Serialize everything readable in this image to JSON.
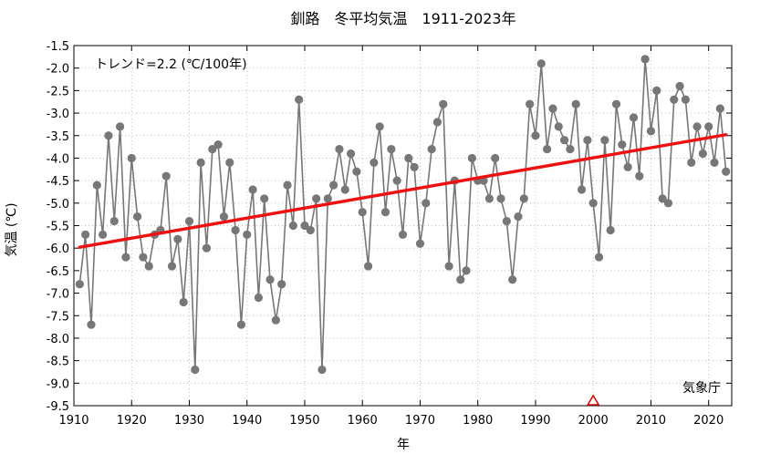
{
  "chart_data": {
    "type": "line",
    "title": "釧路　冬平均気温　1911-2023年",
    "xlabel": "年",
    "ylabel": "気温 (℃)",
    "annotation_trend": "トレンド=2.2 (℃/100年)",
    "source": "気象庁",
    "xlim": [
      1910,
      2024
    ],
    "ylim": [
      -9.5,
      -1.5
    ],
    "x_ticks": [
      1910,
      1920,
      1930,
      1940,
      1950,
      1960,
      1970,
      1980,
      1990,
      2000,
      2010,
      2020
    ],
    "x_tick_labels": [
      "1910",
      "1920",
      "1930",
      "1940",
      "1950",
      "1960",
      "1970",
      "1980",
      "1990",
      "2000",
      "2010",
      "2020"
    ],
    "y_ticks": [
      -9.5,
      -9.0,
      -8.5,
      -8.0,
      -7.5,
      -7.0,
      -6.5,
      -6.0,
      -5.5,
      -5.0,
      -4.5,
      -4.0,
      -3.5,
      -3.0,
      -2.5,
      -2.0,
      -1.5
    ],
    "y_tick_labels": [
      "-9.5",
      "-9.0",
      "-8.5",
      "-8.0",
      "-7.5",
      "-7.0",
      "-6.5",
      "-6.0",
      "-5.5",
      "-5.0",
      "-4.5",
      "-4.0",
      "-3.5",
      "-3.0",
      "-2.5",
      "-2.0",
      "-1.5"
    ],
    "grid": true,
    "series": [
      {
        "color": "#777777",
        "x": [
          1911,
          1912,
          1913,
          1914,
          1915,
          1916,
          1917,
          1918,
          1919,
          1920,
          1921,
          1922,
          1923,
          1924,
          1925,
          1926,
          1927,
          1928,
          1929,
          1930,
          1931,
          1932,
          1933,
          1934,
          1935,
          1936,
          1937,
          1938,
          1939,
          1940,
          1941,
          1942,
          1943,
          1944,
          1945,
          1946,
          1947,
          1948,
          1949,
          1950,
          1951,
          1952,
          1953,
          1954,
          1955,
          1956,
          1957,
          1958,
          1959,
          1960,
          1961,
          1962,
          1963,
          1964,
          1965,
          1966,
          1967,
          1968,
          1969,
          1970,
          1971,
          1972,
          1973,
          1974,
          1975,
          1976,
          1977,
          1978,
          1979,
          1980,
          1981,
          1982,
          1983,
          1984,
          1985,
          1986,
          1987,
          1988,
          1989,
          1990,
          1991,
          1992,
          1993,
          1994,
          1995,
          1996,
          1997,
          1998,
          1999,
          2000,
          2001,
          2002,
          2003,
          2004,
          2005,
          2006,
          2007,
          2008,
          2009,
          2010,
          2011,
          2012,
          2013,
          2014,
          2015,
          2016,
          2017,
          2018,
          2019,
          2020,
          2021,
          2022,
          2023
        ],
        "y": [
          -6.8,
          -5.7,
          -7.7,
          -4.6,
          -5.7,
          -3.5,
          -5.4,
          -3.3,
          -6.2,
          -4.0,
          -5.3,
          -6.2,
          -6.4,
          -5.7,
          -5.6,
          -4.4,
          -6.4,
          -5.8,
          -7.2,
          -5.4,
          -8.7,
          -4.1,
          -6.0,
          -3.8,
          -3.7,
          -5.3,
          -4.1,
          -5.6,
          -7.7,
          -5.7,
          -4.7,
          -7.1,
          -4.9,
          -6.7,
          -7.6,
          -6.8,
          -4.6,
          -5.5,
          -2.7,
          -5.5,
          -5.6,
          -4.9,
          -8.7,
          -4.9,
          -4.6,
          -3.8,
          -4.7,
          -3.9,
          -4.3,
          -5.2,
          -6.4,
          -4.1,
          -3.3,
          -5.2,
          -3.8,
          -4.5,
          -5.7,
          -4.0,
          -4.2,
          -5.9,
          -5.0,
          -3.8,
          -3.2,
          -2.8,
          -6.4,
          -4.5,
          -6.7,
          -6.5,
          -4.0,
          -4.5,
          -4.5,
          -4.9,
          -4.0,
          -4.9,
          -5.4,
          -6.7,
          -5.3,
          -4.9,
          -2.8,
          -3.5,
          -1.9,
          -3.8,
          -2.9,
          -3.3,
          -3.6,
          -3.8,
          -2.8,
          -4.7,
          -3.6,
          -5.0,
          -6.2,
          -3.6,
          -5.6,
          -2.8,
          -3.7,
          -4.2,
          -3.1,
          -4.4,
          -1.8,
          -3.4,
          -2.5,
          -4.9,
          -5.0,
          -2.7,
          -2.4,
          -2.7,
          -4.1,
          -3.3,
          -3.9,
          -3.3,
          -4.1,
          -2.9,
          -4.3
        ]
      }
    ],
    "trend": {
      "color": "#ee1111",
      "x": [
        1911,
        2023
      ],
      "y": [
        -5.98,
        -3.48
      ]
    },
    "marker_event": {
      "year": 2000,
      "color": "#dd0000"
    }
  }
}
